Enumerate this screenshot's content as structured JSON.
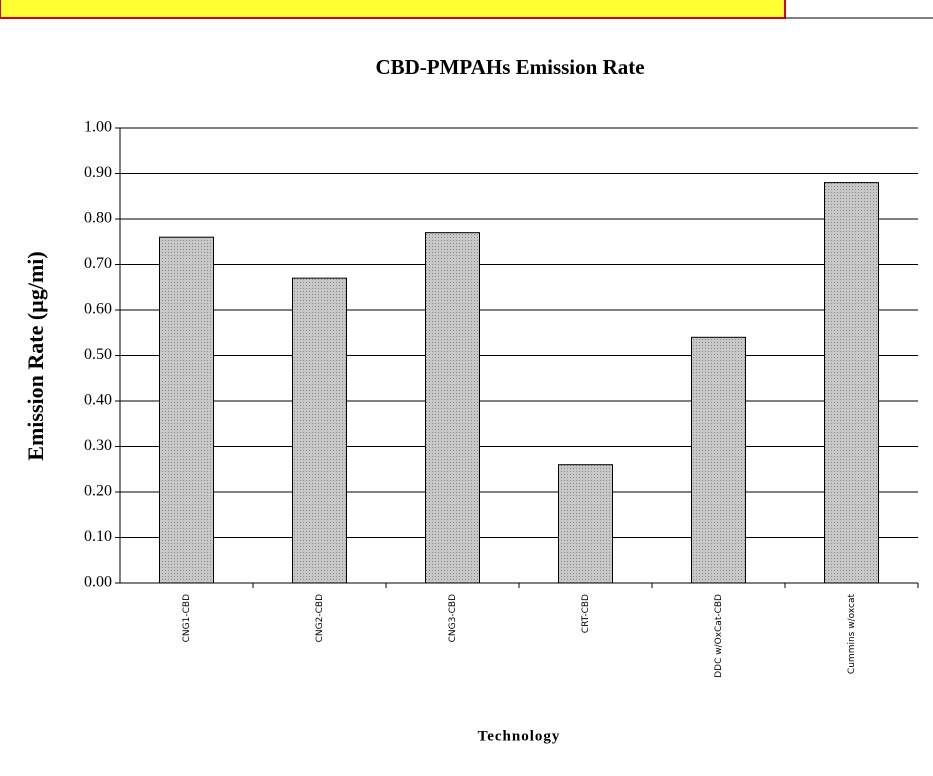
{
  "chart_data": {
    "type": "bar",
    "title": "CBD-PMPAHs Emission Rate",
    "x_label": "Technology",
    "y_label": "Emission Rate (µg/mi)",
    "categories": [
      "CNG1-CBD",
      "CNG2-CBD",
      "CNG3-CBD",
      "CRT-CBD",
      "DDC w/OxCat-CBD",
      "Cummins w/oxcat"
    ],
    "values": [
      0.76,
      0.67,
      0.77,
      0.26,
      0.54,
      0.88
    ],
    "color": "#b4b4b4",
    "ylim": [
      0,
      1
    ],
    "yticks": [
      {
        "value": 0,
        "label": "0.00"
      },
      {
        "value": 0.1,
        "label": "0.10"
      },
      {
        "value": 0.2,
        "label": "0.20"
      },
      {
        "value": 0.3,
        "label": "0.30"
      },
      {
        "value": 0.4,
        "label": "0.40"
      },
      {
        "value": 0.5,
        "label": "0.50"
      },
      {
        "value": 0.6,
        "label": "0.60"
      },
      {
        "value": 0.7,
        "label": "0.70"
      },
      {
        "value": 0.8,
        "label": "0.80"
      },
      {
        "value": 0.9,
        "label": "0.90"
      },
      {
        "value": 1,
        "label": "1.00"
      }
    ],
    "grid": true
  }
}
